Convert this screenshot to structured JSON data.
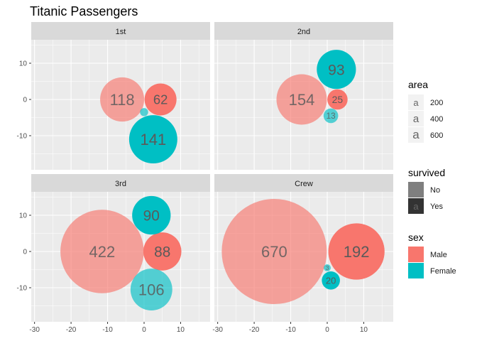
{
  "chart_data": {
    "type": "bubble",
    "title": "Titanic Passengers",
    "xlabel": "",
    "ylabel": "",
    "xlim": [
      -31,
      18
    ],
    "ylim": [
      -19,
      19
    ],
    "x_ticks": [
      -30,
      -20,
      -10,
      0,
      10
    ],
    "y_ticks": [
      -10,
      0,
      10
    ],
    "grid": true,
    "facets": [
      {
        "label": "1st",
        "bubbles": [
          {
            "value": 118,
            "x": -6,
            "y": 0,
            "survived": "No",
            "sex": "Male"
          },
          {
            "value": 62,
            "x": 4.5,
            "y": 0,
            "survived": "Yes",
            "sex": "Male"
          },
          {
            "value": 141,
            "x": 2.5,
            "y": -11,
            "survived": "Yes",
            "sex": "Female"
          },
          {
            "value": 4,
            "x": 0,
            "y": -3.5,
            "survived": "No",
            "sex": "Female",
            "label": ""
          }
        ]
      },
      {
        "label": "2nd",
        "bubbles": [
          {
            "value": 154,
            "x": -7,
            "y": 0,
            "survived": "No",
            "sex": "Male"
          },
          {
            "value": 25,
            "x": 2.8,
            "y": 0,
            "survived": "Yes",
            "sex": "Male"
          },
          {
            "value": 93,
            "x": 2.5,
            "y": 8.3,
            "survived": "Yes",
            "sex": "Female"
          },
          {
            "value": 13,
            "x": 1,
            "y": -4.5,
            "survived": "No",
            "sex": "Female"
          }
        ]
      },
      {
        "label": "3rd",
        "bubbles": [
          {
            "value": 422,
            "x": -11.5,
            "y": 0,
            "survived": "No",
            "sex": "Male"
          },
          {
            "value": 88,
            "x": 5,
            "y": 0,
            "survived": "Yes",
            "sex": "Male"
          },
          {
            "value": 90,
            "x": 2,
            "y": 10,
            "survived": "Yes",
            "sex": "Female"
          },
          {
            "value": 106,
            "x": 2,
            "y": -10.5,
            "survived": "No",
            "sex": "Female"
          }
        ]
      },
      {
        "label": "Crew",
        "bubbles": [
          {
            "value": 670,
            "x": -14.5,
            "y": 0,
            "survived": "No",
            "sex": "Male"
          },
          {
            "value": 192,
            "x": 8,
            "y": 0,
            "survived": "Yes",
            "sex": "Male"
          },
          {
            "value": 20,
            "x": 1,
            "y": -8,
            "survived": "Yes",
            "sex": "Female"
          },
          {
            "value": 3,
            "x": 0,
            "y": -4.5,
            "survived": "No",
            "sex": "Female"
          }
        ]
      }
    ],
    "legend": {
      "placement": "right",
      "area": {
        "title": "area",
        "symbol": "a",
        "entries": [
          "200",
          "400",
          "600"
        ]
      },
      "survived": {
        "title": "survived",
        "entries": [
          "No",
          "Yes"
        ]
      },
      "sex": {
        "title": "sex",
        "entries": [
          "Male",
          "Female"
        ]
      }
    },
    "colors": {
      "Male": "#f8766d",
      "Female": "#00bfc4",
      "alpha_no": 0.65,
      "alpha_yes": 1.0,
      "panel_bg": "#ebebeb",
      "strip_bg": "#d9d9d9",
      "grid_major": "#ffffff",
      "label_text": "#5a5a5a"
    }
  }
}
